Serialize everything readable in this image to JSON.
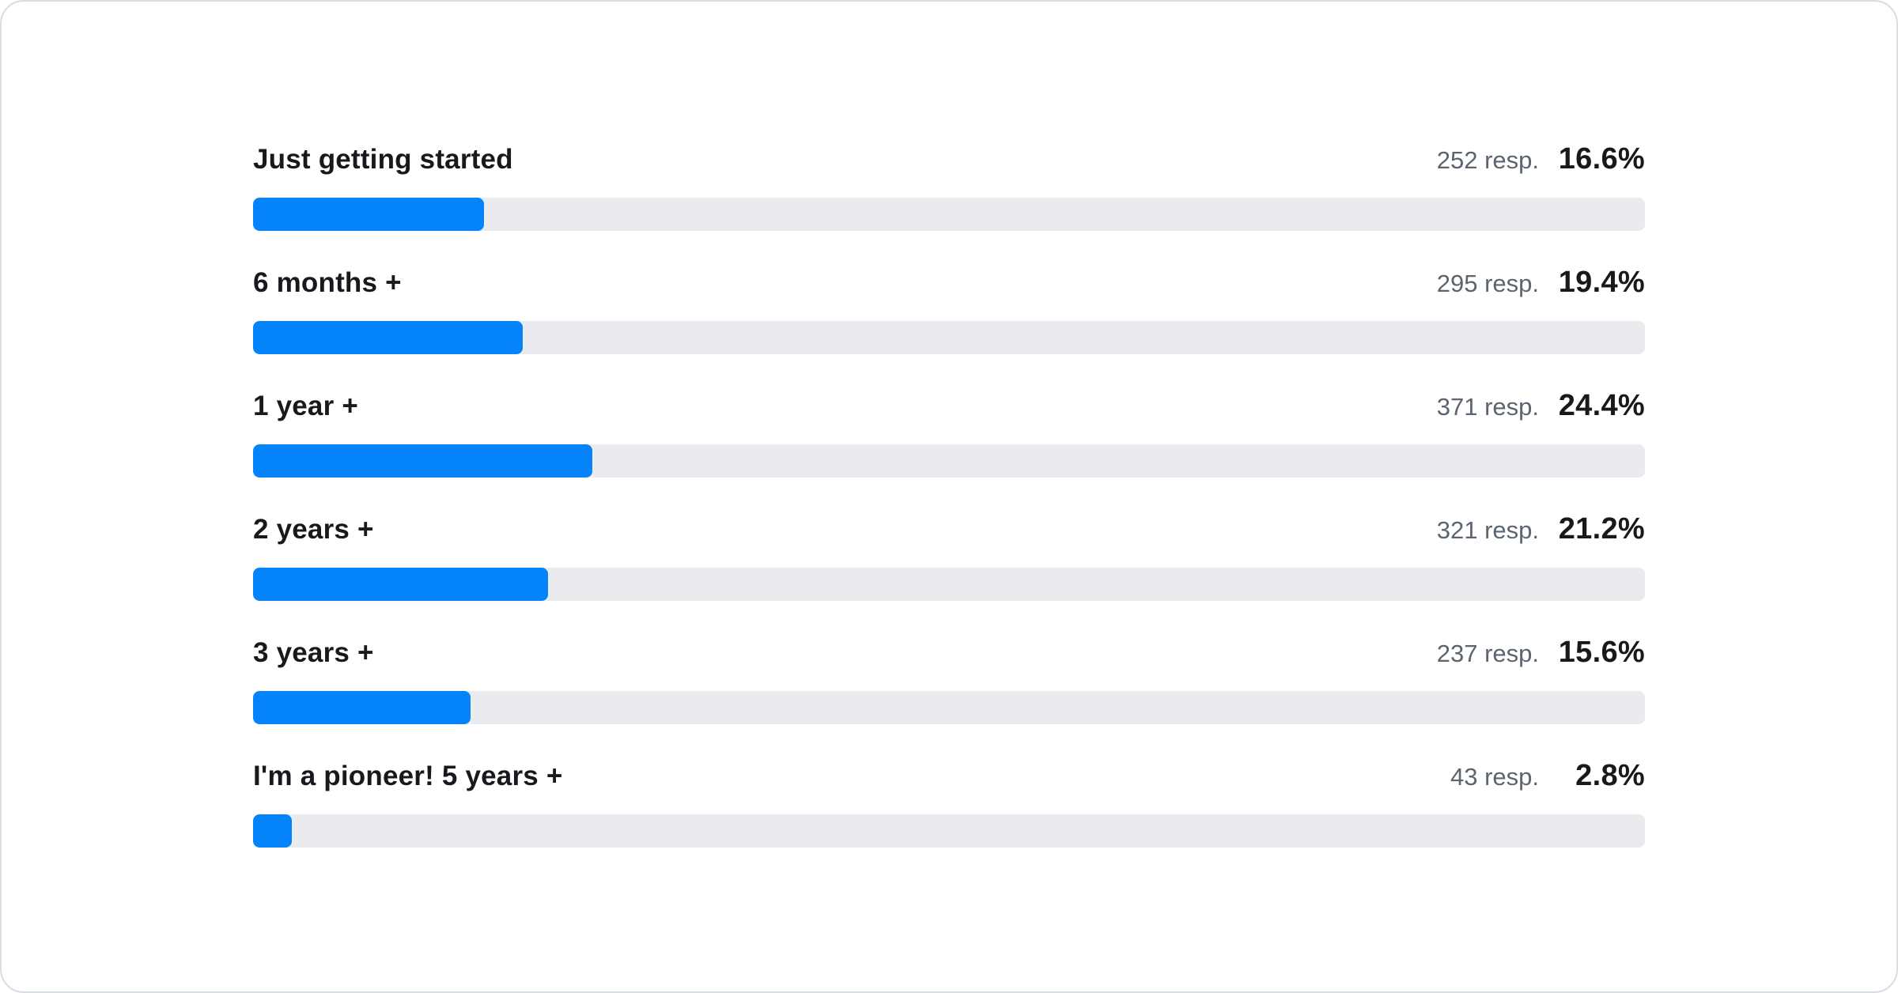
{
  "colors": {
    "accent_blue": "#0583fb",
    "track_gray": "#e9ebee",
    "card_border": "#d9dde2",
    "label_text": "#17191c",
    "resp_text": "#5a6571"
  },
  "rows": [
    {
      "label": "Just getting started",
      "respondents_label": "252 resp.",
      "percent_label": "16.6%",
      "percent_value": 16.6
    },
    {
      "label": "6 months +",
      "respondents_label": "295 resp.",
      "percent_label": "19.4%",
      "percent_value": 19.4
    },
    {
      "label": "1 year +",
      "respondents_label": "371 resp.",
      "percent_label": "24.4%",
      "percent_value": 24.4
    },
    {
      "label": "2 years +",
      "respondents_label": "321 resp.",
      "percent_label": "21.2%",
      "percent_value": 21.2
    },
    {
      "label": "3 years +",
      "respondents_label": "237 resp.",
      "percent_label": "15.6%",
      "percent_value": 15.6
    },
    {
      "label": "I'm a pioneer! 5 years +",
      "respondents_label": "43 resp.",
      "percent_label": "2.8%",
      "percent_value": 2.8
    }
  ],
  "chart_data": {
    "type": "bar",
    "orientation": "horizontal",
    "categories": [
      "Just getting started",
      "6 months +",
      "1 year +",
      "2 years +",
      "3 years +",
      "I'm a pioneer! 5 years +"
    ],
    "series": [
      {
        "name": "respondents",
        "values": [
          252,
          295,
          371,
          321,
          237,
          43
        ]
      },
      {
        "name": "percent",
        "values": [
          16.6,
          19.4,
          24.4,
          21.2,
          15.6,
          2.8
        ]
      }
    ],
    "title": "",
    "xlabel": "",
    "ylabel": "",
    "xlim": [
      0,
      100
    ],
    "grid": false,
    "legend_position": "none"
  }
}
